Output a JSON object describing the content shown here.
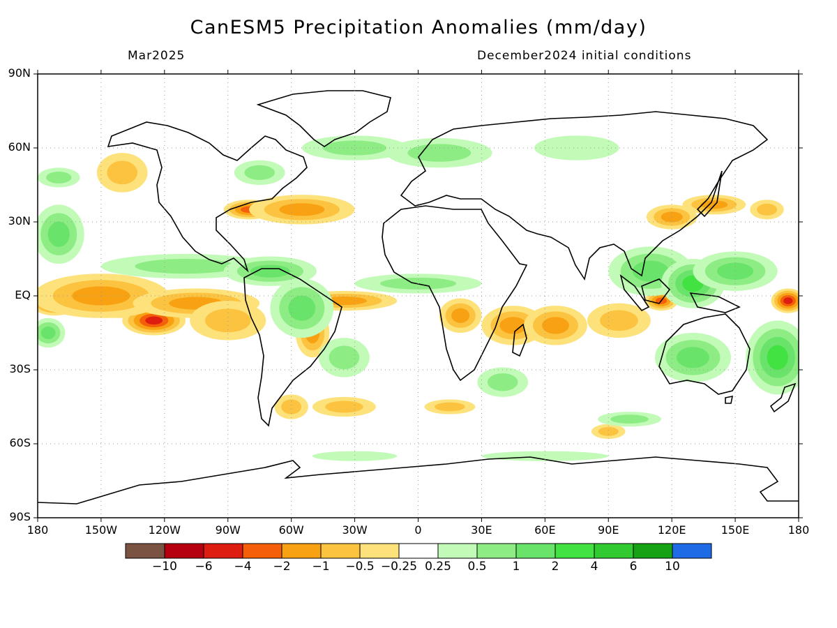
{
  "header": {
    "title": "CanESM5 Precipitation Anomalies (mm/day)",
    "left_label": "Mar2025",
    "right_label": "December2024 initial conditions"
  },
  "axes": {
    "lat_labels": [
      "90N",
      "60N",
      "30N",
      "EQ",
      "30S",
      "60S",
      "90S"
    ],
    "lat_values": [
      90,
      60,
      30,
      0,
      -30,
      -60,
      -90
    ],
    "lon_labels": [
      "180",
      "150W",
      "120W",
      "90W",
      "60W",
      "30W",
      "0",
      "30E",
      "60E",
      "90E",
      "120E",
      "150E",
      "180"
    ],
    "lon_values": [
      -180,
      -150,
      -120,
      -90,
      -60,
      -30,
      0,
      30,
      60,
      90,
      120,
      150,
      180
    ]
  },
  "colorbar": {
    "colors": [
      "#7b5343",
      "#b7000f",
      "#dc1d10",
      "#f55f0a",
      "#f8a112",
      "#fbc33f",
      "#fde27b",
      "#ffffff",
      "#c2fbb7",
      "#8eec84",
      "#6ae36a",
      "#42e242",
      "#31cb31",
      "#15a215",
      "#1f6be6"
    ],
    "labels": [
      "−10",
      "−6",
      "−4",
      "−2",
      "−1",
      "−0.5",
      "−0.25",
      "0.25",
      "0.5",
      "1",
      "2",
      "4",
      "6",
      "10"
    ]
  },
  "chart_data": {
    "type": "heatmap",
    "grid": true,
    "xlim": [
      -180,
      180
    ],
    "ylim": [
      -90,
      90
    ],
    "blobs": [
      {
        "lon": -172,
        "lat": -2,
        "rx": 12,
        "ry": 6,
        "v": -4
      },
      {
        "lon": -140,
        "lat": -3,
        "rx": 40,
        "ry": 6,
        "v": -2
      },
      {
        "lon": -125,
        "lat": -10,
        "rx": 15,
        "ry": 6,
        "v": -4
      },
      {
        "lon": -150,
        "lat": 0,
        "rx": 32,
        "ry": 9,
        "v": -1
      },
      {
        "lon": -105,
        "lat": -3,
        "rx": 30,
        "ry": 6,
        "v": -1
      },
      {
        "lon": -90,
        "lat": -10,
        "rx": 18,
        "ry": 8,
        "v": -0.5
      },
      {
        "lon": -140,
        "lat": 50,
        "rx": 12,
        "ry": 8,
        "v": -0.5
      },
      {
        "lon": -80,
        "lat": 35,
        "rx": 12,
        "ry": 4,
        "v": -2
      },
      {
        "lon": -55,
        "lat": 35,
        "rx": 25,
        "ry": 6,
        "v": -1
      },
      {
        "lon": -35,
        "lat": -2,
        "rx": 25,
        "ry": 4,
        "v": -1
      },
      {
        "lon": -50,
        "lat": -15,
        "rx": 8,
        "ry": 10,
        "v": -1
      },
      {
        "lon": -60,
        "lat": -45,
        "rx": 8,
        "ry": 5,
        "v": -0.5
      },
      {
        "lon": -35,
        "lat": -45,
        "rx": 15,
        "ry": 4,
        "v": -0.5
      },
      {
        "lon": 15,
        "lat": -45,
        "rx": 12,
        "ry": 3,
        "v": -0.5
      },
      {
        "lon": 20,
        "lat": -8,
        "rx": 10,
        "ry": 7,
        "v": -1
      },
      {
        "lon": 45,
        "lat": -12,
        "rx": 15,
        "ry": 8,
        "v": -1
      },
      {
        "lon": 65,
        "lat": -12,
        "rx": 15,
        "ry": 8,
        "v": -1
      },
      {
        "lon": 95,
        "lat": -10,
        "rx": 15,
        "ry": 7,
        "v": -0.5
      },
      {
        "lon": 120,
        "lat": 32,
        "rx": 12,
        "ry": 5,
        "v": -1
      },
      {
        "lon": 140,
        "lat": 37,
        "rx": 15,
        "ry": 4,
        "v": -1
      },
      {
        "lon": 115,
        "lat": -2,
        "rx": 8,
        "ry": 4,
        "v": -2
      },
      {
        "lon": 175,
        "lat": -2,
        "rx": 8,
        "ry": 5,
        "v": -4
      },
      {
        "lon": 165,
        "lat": 35,
        "rx": 8,
        "ry": 4,
        "v": -0.5
      },
      {
        "lon": 90,
        "lat": -55,
        "rx": 8,
        "ry": 3,
        "v": -0.5
      },
      {
        "lon": -170,
        "lat": 25,
        "rx": 12,
        "ry": 12,
        "v": 1
      },
      {
        "lon": -175,
        "lat": -15,
        "rx": 8,
        "ry": 6,
        "v": 1
      },
      {
        "lon": -110,
        "lat": 12,
        "rx": 40,
        "ry": 5,
        "v": 0.5
      },
      {
        "lon": -70,
        "lat": 10,
        "rx": 22,
        "ry": 6,
        "v": 1
      },
      {
        "lon": -55,
        "lat": -5,
        "rx": 15,
        "ry": 12,
        "v": 1
      },
      {
        "lon": -35,
        "lat": -25,
        "rx": 12,
        "ry": 8,
        "v": 0.5
      },
      {
        "lon": -30,
        "lat": 60,
        "rx": 25,
        "ry": 5,
        "v": 0.5
      },
      {
        "lon": -75,
        "lat": 50,
        "rx": 12,
        "ry": 5,
        "v": 0.5
      },
      {
        "lon": 0,
        "lat": 5,
        "rx": 30,
        "ry": 4,
        "v": 0.5
      },
      {
        "lon": 10,
        "lat": 58,
        "rx": 25,
        "ry": 6,
        "v": 0.5
      },
      {
        "lon": 75,
        "lat": 60,
        "rx": 20,
        "ry": 5,
        "v": 0.25
      },
      {
        "lon": 110,
        "lat": 10,
        "rx": 20,
        "ry": 10,
        "v": 1
      },
      {
        "lon": 130,
        "lat": 5,
        "rx": 15,
        "ry": 10,
        "v": 2
      },
      {
        "lon": 150,
        "lat": 10,
        "rx": 20,
        "ry": 8,
        "v": 1
      },
      {
        "lon": 130,
        "lat": -25,
        "rx": 18,
        "ry": 10,
        "v": 1
      },
      {
        "lon": 170,
        "lat": -25,
        "rx": 15,
        "ry": 15,
        "v": 2
      },
      {
        "lon": 40,
        "lat": -35,
        "rx": 12,
        "ry": 6,
        "v": 0.5
      },
      {
        "lon": 100,
        "lat": -50,
        "rx": 15,
        "ry": 3,
        "v": 0.5
      },
      {
        "lon": -30,
        "lat": -65,
        "rx": 20,
        "ry": 2,
        "v": 0.25
      },
      {
        "lon": 60,
        "lat": -65,
        "rx": 30,
        "ry": 2,
        "v": 0.25
      },
      {
        "lon": -170,
        "lat": 48,
        "rx": 10,
        "ry": 4,
        "v": 0.5
      }
    ]
  }
}
